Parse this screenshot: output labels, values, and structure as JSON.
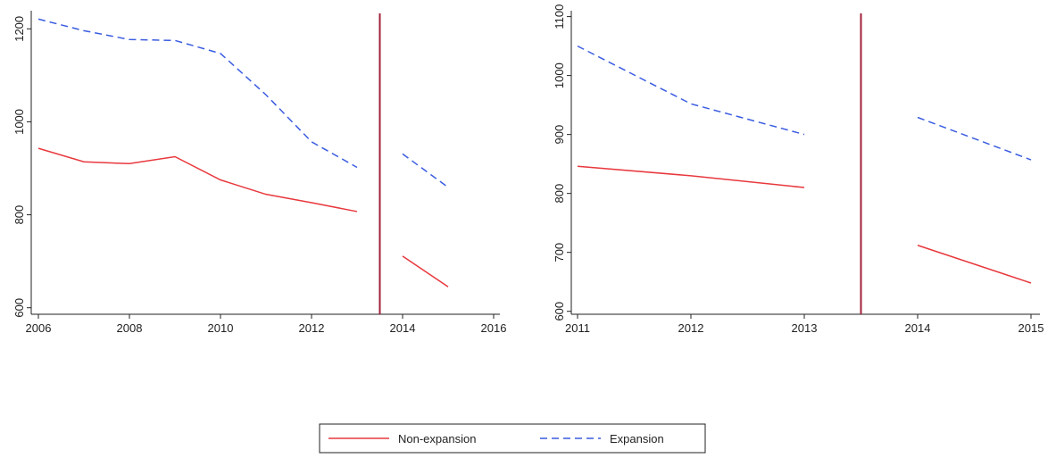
{
  "chart_data": [
    {
      "type": "line",
      "x": [
        2006,
        2007,
        2008,
        2009,
        2010,
        2011,
        2012,
        2013,
        2014,
        2015
      ],
      "xlim": [
        2006,
        2016
      ],
      "xticks": [
        2006,
        2008,
        2010,
        2012,
        2014,
        2016
      ],
      "ylim": [
        586,
        1239
      ],
      "yticks": [
        600,
        800,
        1000,
        1200
      ],
      "vline": 2013.5,
      "vline_color": "#a0203a",
      "series": [
        {
          "name": "Non-expansion",
          "color": "#e8383d",
          "dash": "solid",
          "values": [
            943,
            914,
            910,
            925,
            875,
            844,
            826,
            807,
            711,
            645
          ]
        },
        {
          "name": "Expansion",
          "color": "#3a5ce0",
          "dash": "dashed",
          "values": [
            1221,
            1196,
            1177,
            1175,
            1147,
            1058,
            957,
            902,
            931,
            859
          ]
        }
      ]
    },
    {
      "type": "line",
      "x": [
        2011,
        2012,
        2013,
        2014,
        2015
      ],
      "xlim": [
        2011,
        2015
      ],
      "xticks": [
        2011,
        2012,
        2013,
        2014,
        2015
      ],
      "ylim": [
        595,
        1110
      ],
      "yticks": [
        600,
        700,
        800,
        900,
        1000,
        1100
      ],
      "vline": 2013.5,
      "vline_color": "#a0203a",
      "series": [
        {
          "name": "Non-expansion",
          "color": "#e8383d",
          "dash": "solid",
          "values": [
            846,
            830,
            810,
            712,
            648
          ]
        },
        {
          "name": "Expansion",
          "color": "#3a5ce0",
          "dash": "dashed",
          "values": [
            1050,
            952,
            900,
            929,
            857
          ]
        }
      ]
    }
  ]
}
